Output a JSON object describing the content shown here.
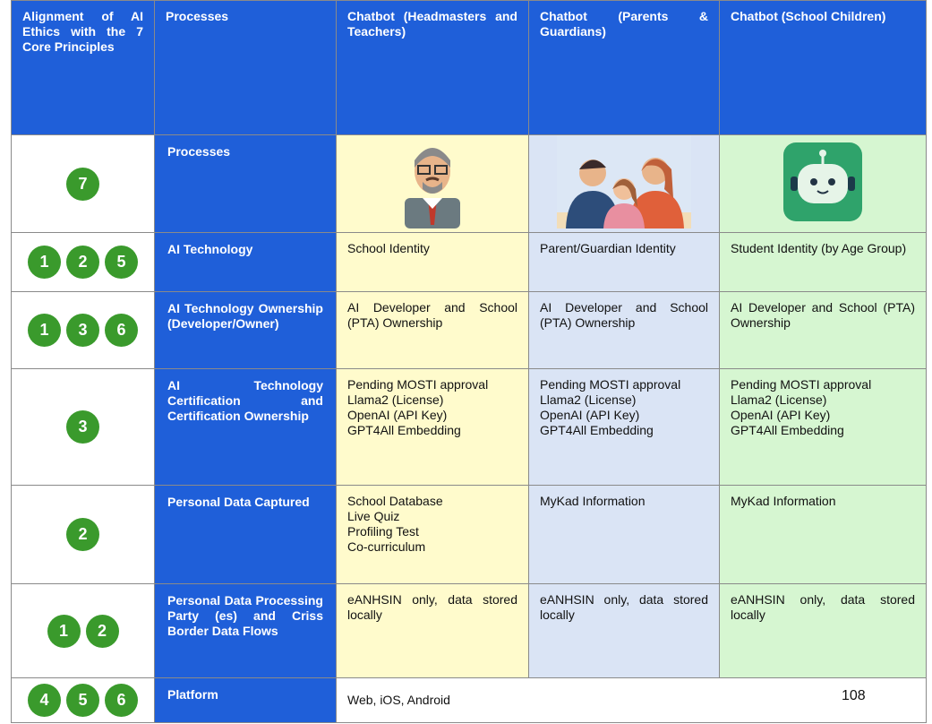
{
  "header": [
    "Alignment of AI Ethics with the 7 Core Principles",
    "Processes",
    "Chatbot (Headmasters and Teachers)",
    "Chatbot (Parents & Guardians)",
    "Chatbot (School Children)"
  ],
  "rows": [
    {
      "badges": [
        7
      ],
      "label": "Processes",
      "cells": []
    },
    {
      "badges": [
        1,
        2,
        5
      ],
      "label": "AI Technology",
      "cells": [
        [
          "School Identity"
        ],
        [
          "Parent/Guardian Identity"
        ],
        [
          "Student Identity (by Age Group)"
        ]
      ]
    },
    {
      "badges": [
        1,
        3,
        6
      ],
      "label": "AI Technology Ownership (Developer/Owner)",
      "cells": [
        [
          "AI Developer and School (PTA) Ownership"
        ],
        [
          "AI Developer and School (PTA) Ownership"
        ],
        [
          "AI Developer and School (PTA) Ownership"
        ]
      ]
    },
    {
      "badges": [
        3
      ],
      "label": "AI Technology Certification and Certification Ownership",
      "cells": [
        [
          "Pending MOSTI approval",
          "Llama2 (License)",
          "OpenAI (API Key)",
          "GPT4All Embedding"
        ],
        [
          "Pending MOSTI approval",
          "Llama2 (License)",
          "OpenAI (API Key)",
          "GPT4All Embedding"
        ],
        [
          "Pending MOSTI approval",
          "Llama2 (License)",
          "OpenAI (API Key)",
          "GPT4All Embedding"
        ]
      ]
    },
    {
      "badges": [
        2
      ],
      "label": "Personal Data Captured",
      "cells": [
        [
          "School Database",
          "Live Quiz",
          "Profiling Test",
          "Co-curriculum"
        ],
        [
          "MyKad Information"
        ],
        [
          "MyKad Information"
        ]
      ]
    },
    {
      "badges": [
        1,
        2
      ],
      "label": "Personal Data Processing Party (es) and Criss Border Data Flows",
      "cells": [
        [
          "eANHSIN only, data stored locally"
        ],
        [
          "eANHSIN only, data stored locally"
        ],
        [
          "eANHSIN only, data stored locally"
        ]
      ]
    },
    {
      "badges": [
        4,
        5,
        6
      ],
      "label": "Platform",
      "cells": [
        [
          "Web, iOS, Android"
        ]
      ]
    }
  ],
  "page_number": 108
}
